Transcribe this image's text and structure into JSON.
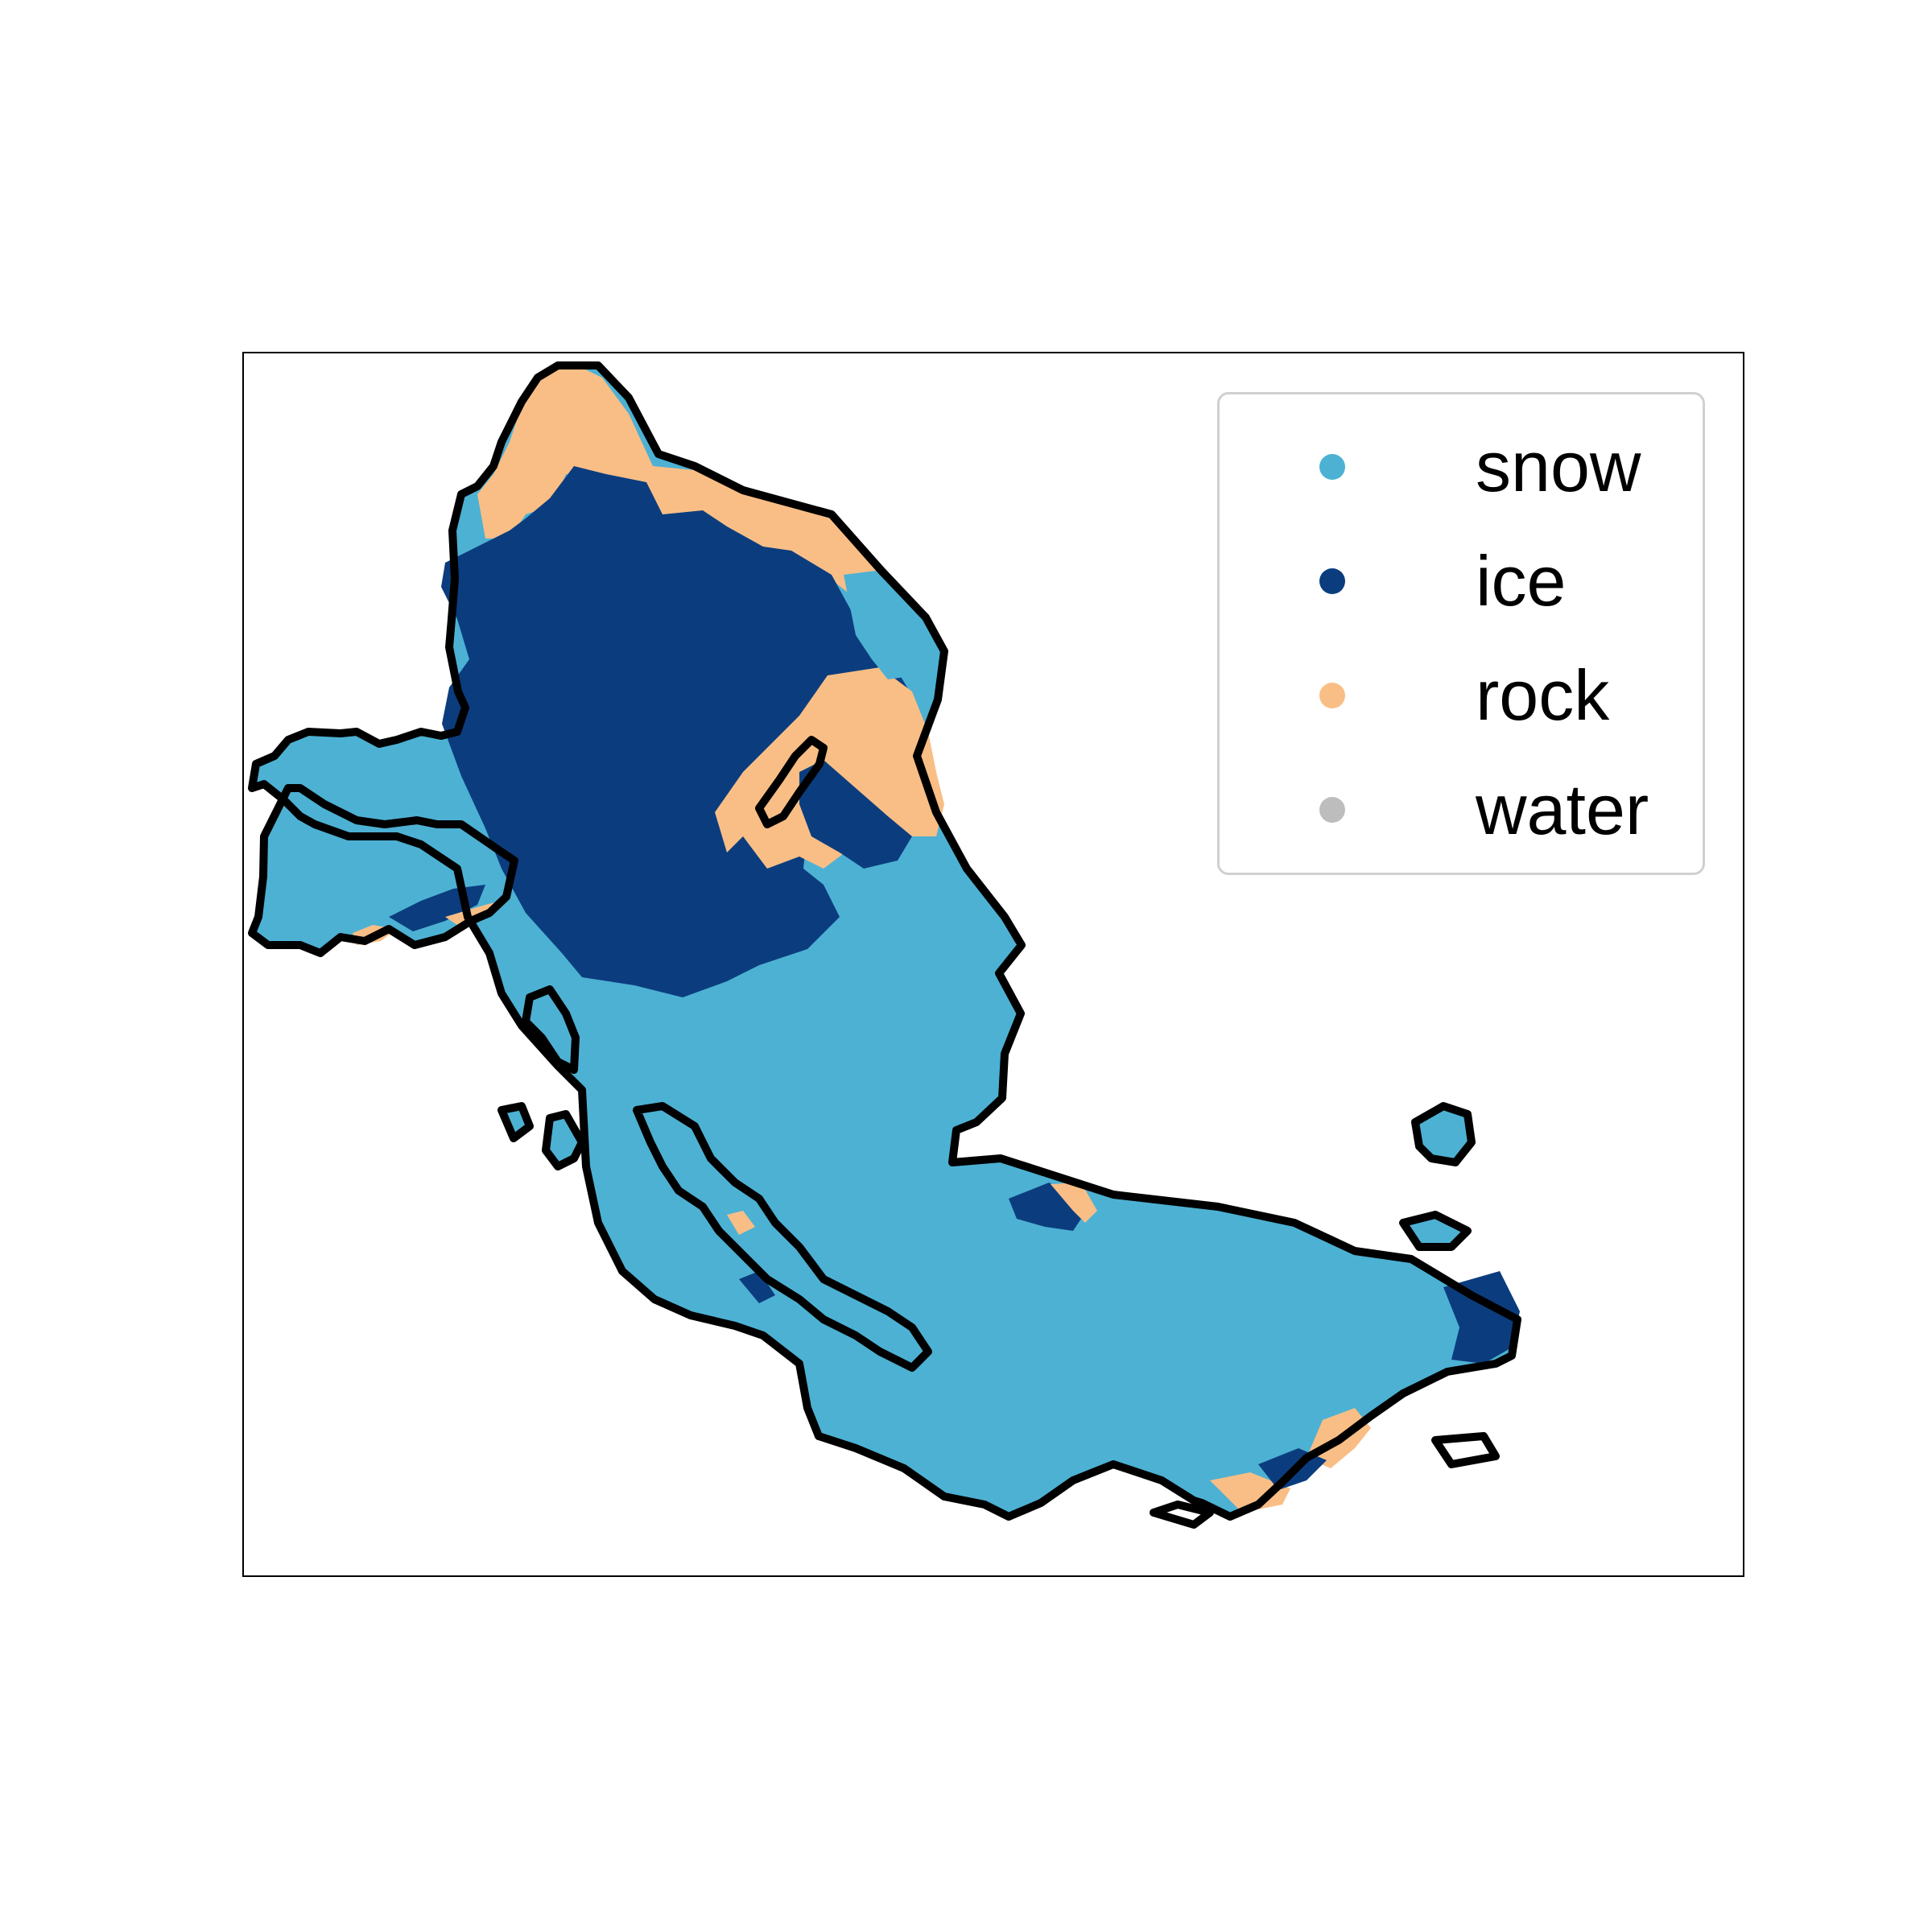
{
  "map": {
    "classes": [
      {
        "key": "snow",
        "label": "snow",
        "color": "#4db1d3"
      },
      {
        "key": "ice",
        "label": "ice",
        "color": "#0b3d7e"
      },
      {
        "key": "rock",
        "label": "rock",
        "color": "#f9be86"
      },
      {
        "key": "water",
        "label": "water",
        "color": "#bdbdbd"
      }
    ],
    "outline_color": "#000000"
  },
  "legend": {
    "placement": "top-right",
    "items": [
      {
        "label": "snow",
        "color": "#4db1d3"
      },
      {
        "label": "ice",
        "color": "#0b3d7e"
      },
      {
        "label": "rock",
        "color": "#f9be86"
      },
      {
        "label": "water",
        "color": "#bdbdbd"
      }
    ]
  }
}
